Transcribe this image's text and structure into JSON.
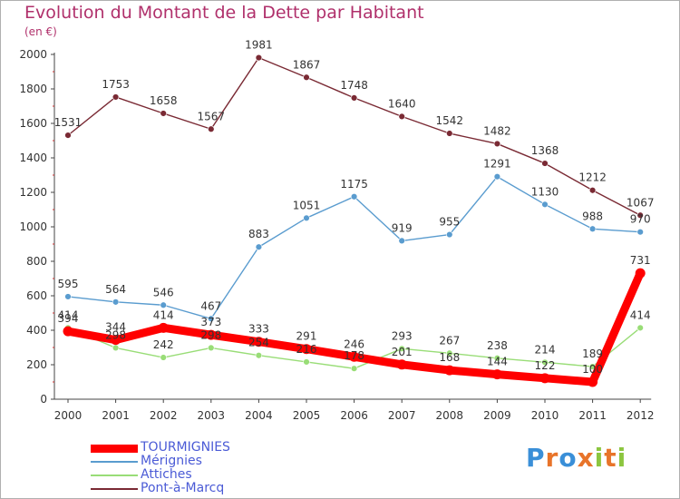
{
  "header": {
    "title": "Evolution du Montant de la Dette par Habitant",
    "subtitle": "(en €)"
  },
  "brand": {
    "name": "Proxiti"
  },
  "colors": {
    "TOURMIGNIES": "#ff0000",
    "Mérignies": "#5a9ccf",
    "Attiches": "#99dd77",
    "Pont-à-Marcq": "#7a2a34"
  },
  "chart_data": {
    "type": "line",
    "title": "Evolution du Montant de la Dette par Habitant",
    "subtitle": "(en €)",
    "x": [
      "2000",
      "2001",
      "2002",
      "2003",
      "2004",
      "2005",
      "2006",
      "2007",
      "2008",
      "2009",
      "2010",
      "2011",
      "2012"
    ],
    "ylim": [
      0,
      2000
    ],
    "yticks": [
      0,
      200,
      400,
      600,
      800,
      1000,
      1200,
      1400,
      1600,
      1800,
      2000
    ],
    "grid": false,
    "legend_position": "bottom-left",
    "series": [
      {
        "name": "Pont-à-Marcq",
        "values": [
          1531,
          1753,
          1658,
          1567,
          1981,
          1867,
          1748,
          1640,
          1542,
          1482,
          1368,
          1212,
          1067
        ]
      },
      {
        "name": "Mérignies",
        "values": [
          595,
          564,
          546,
          467,
          883,
          1051,
          1175,
          919,
          955,
          1291,
          1130,
          988,
          970
        ]
      },
      {
        "name": "Attiches",
        "values": [
          414,
          298,
          242,
          298,
          254,
          216,
          178,
          293,
          267,
          238,
          214,
          189,
          414
        ]
      },
      {
        "name": "TOURMIGNIES",
        "values": [
          394,
          344,
          414,
          373,
          333,
          291,
          246,
          201,
          168,
          144,
          122,
          100,
          731
        ]
      }
    ],
    "legend": [
      "TOURMIGNIES",
      "Mérignies",
      "Attiches",
      "Pont-à-Marcq"
    ]
  }
}
